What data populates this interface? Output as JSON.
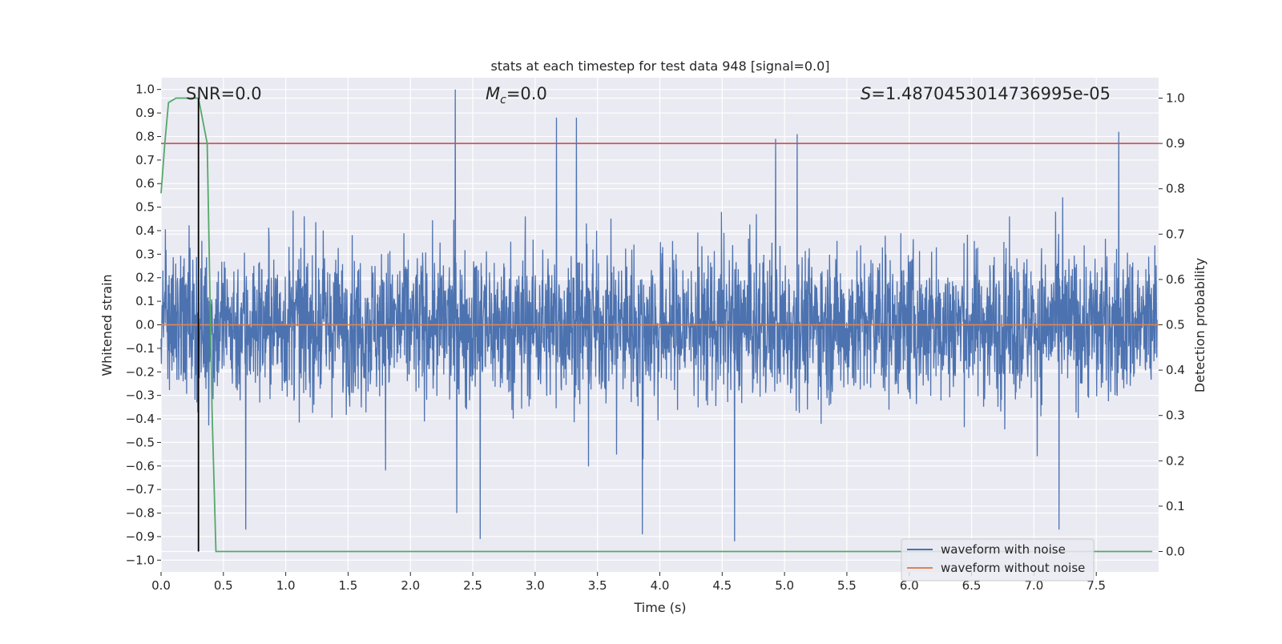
{
  "chart_data": {
    "type": "line",
    "title": "stats at each timestep for test data 948 [signal=0.0]",
    "xlabel": "Time (s)",
    "ylabel": "Whitened strain",
    "y2label": "Detection probability",
    "xlim": [
      0.0,
      8.0
    ],
    "ylim": [
      -1.05,
      1.05
    ],
    "y2lim": [
      -0.045,
      1.045
    ],
    "x_ticks": [
      0.0,
      0.5,
      1.0,
      1.5,
      2.0,
      2.5,
      3.0,
      3.5,
      4.0,
      4.5,
      5.0,
      5.5,
      6.0,
      6.5,
      7.0,
      7.5
    ],
    "x_tick_labels": [
      "0.0",
      "0.5",
      "1.0",
      "1.5",
      "2.0",
      "2.5",
      "3.0",
      "3.5",
      "4.0",
      "4.5",
      "5.0",
      "5.5",
      "6.0",
      "6.5",
      "7.0",
      "7.5"
    ],
    "y_ticks": [
      -1.0,
      -0.9,
      -0.8,
      -0.7,
      -0.6,
      -0.5,
      -0.4,
      -0.3,
      -0.2,
      -0.1,
      0.0,
      0.1,
      0.2,
      0.3,
      0.4,
      0.5,
      0.6,
      0.7,
      0.8,
      0.9,
      1.0
    ],
    "y_tick_labels": [
      "−1.0",
      "−0.9",
      "−0.8",
      "−0.7",
      "−0.6",
      "−0.5",
      "−0.4",
      "−0.3",
      "−0.2",
      "−0.1",
      "0.0",
      "0.1",
      "0.2",
      "0.3",
      "0.4",
      "0.5",
      "0.6",
      "0.7",
      "0.8",
      "0.9",
      "1.0"
    ],
    "y2_ticks": [
      0.0,
      0.1,
      0.2,
      0.3,
      0.4,
      0.5,
      0.6,
      0.7,
      0.8,
      0.9,
      1.0
    ],
    "y2_tick_labels": [
      "0.0",
      "0.1",
      "0.2",
      "0.3",
      "0.4",
      "0.5",
      "0.6",
      "0.7",
      "0.8",
      "0.9",
      "1.0"
    ],
    "grid": true,
    "annotations": {
      "snr": "SNR=0.0",
      "mc_symbol": "M",
      "mc_sub": "c",
      "mc_value": "=0.0",
      "s_symbol": "S",
      "s_value": "=1.4870453014736995e-05"
    },
    "series": [
      {
        "name": "waveform with noise",
        "color": "#4c72b0",
        "description": "noisy whitened strain sampled densely over 0–8 s, mostly within ±0.4",
        "peaks": [
          {
            "x": 2.36,
            "y": 1.0
          },
          {
            "x": 3.17,
            "y": 0.88
          },
          {
            "x": 3.33,
            "y": 0.88
          },
          {
            "x": 4.93,
            "y": 0.79
          },
          {
            "x": 5.1,
            "y": 0.81
          },
          {
            "x": 7.68,
            "y": 0.82
          },
          {
            "x": 2.56,
            "y": -0.91
          },
          {
            "x": 4.6,
            "y": -0.92
          },
          {
            "x": 3.86,
            "y": -0.89
          },
          {
            "x": 7.2,
            "y": -0.87
          },
          {
            "x": 0.68,
            "y": -0.87
          }
        ]
      },
      {
        "name": "waveform without noise",
        "color": "#dd8452",
        "x": [
          0.0,
          8.0
        ],
        "y": [
          0.0,
          0.0
        ]
      },
      {
        "name": "detection probability",
        "color": "#55a868",
        "axis": "right",
        "x": [
          0.0,
          0.03,
          0.06,
          0.12,
          0.2,
          0.3,
          0.37,
          0.41,
          0.44,
          0.46,
          7.95
        ],
        "y": [
          0.79,
          0.9,
          0.99,
          1.0,
          1.0,
          1.0,
          0.9,
          0.3,
          0.0,
          0.0,
          0.0
        ]
      },
      {
        "name": "threshold",
        "color": "#c44e52",
        "axis": "right",
        "x": [
          0.0,
          8.0
        ],
        "y": [
          0.9,
          0.9
        ]
      },
      {
        "name": "marker",
        "color": "#000000",
        "axis": "right",
        "x": [
          0.3,
          0.3
        ],
        "y": [
          0.0,
          1.0
        ]
      }
    ],
    "legend": {
      "placement": "lower-right",
      "entries": [
        {
          "label": "waveform with noise",
          "color": "#4c72b0"
        },
        {
          "label": "waveform without noise",
          "color": "#dd8452"
        }
      ]
    }
  }
}
